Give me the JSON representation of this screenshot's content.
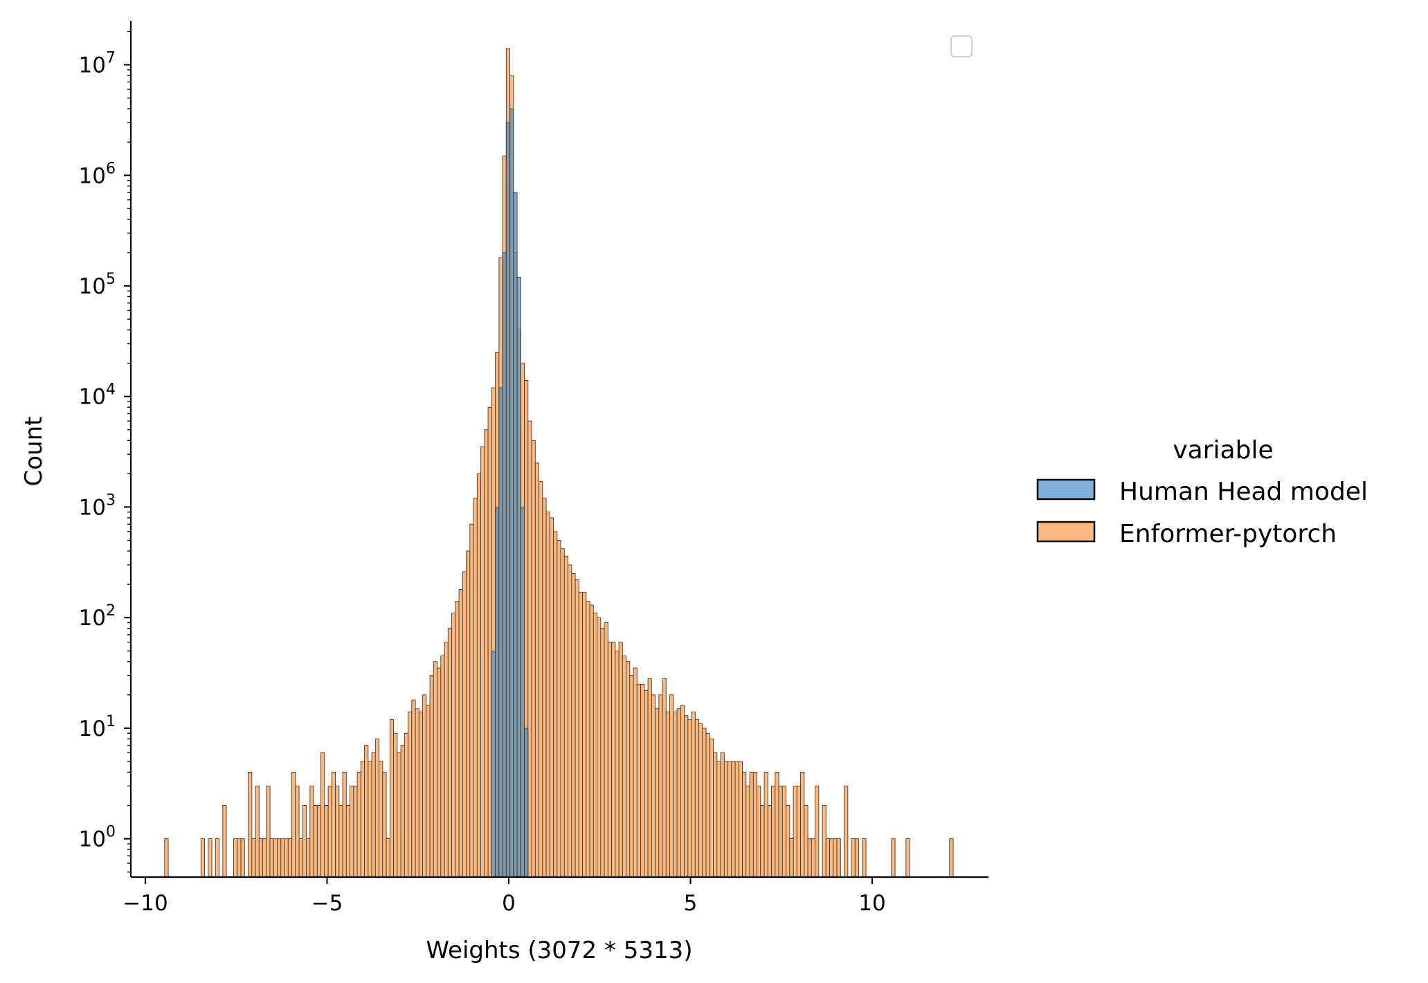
{
  "chart_data": {
    "type": "histogram",
    "title": "",
    "xlabel": "Weights (3072 * 5313)",
    "ylabel": "Count",
    "xlim": [
      -10.4,
      13.2
    ],
    "ylim": [
      0.45,
      25000000
    ],
    "yscale": "log",
    "grid": false,
    "x_ticks": [
      {
        "value": -10,
        "label": "−10"
      },
      {
        "value": -5,
        "label": "−5"
      },
      {
        "value": 0,
        "label": "0"
      },
      {
        "value": 5,
        "label": "5"
      },
      {
        "value": 10,
        "label": "10"
      }
    ],
    "y_ticks": [
      {
        "value": 1,
        "base": "10",
        "exp": "0"
      },
      {
        "value": 10,
        "base": "10",
        "exp": "1"
      },
      {
        "value": 100,
        "base": "10",
        "exp": "2"
      },
      {
        "value": 1000,
        "base": "10",
        "exp": "3"
      },
      {
        "value": 10000,
        "base": "10",
        "exp": "4"
      },
      {
        "value": 100000,
        "base": "10",
        "exp": "5"
      },
      {
        "value": 1000000,
        "base": "10",
        "exp": "6"
      },
      {
        "value": 10000000,
        "base": "10",
        "exp": "7"
      }
    ],
    "legend": {
      "title": "variable",
      "placement": "right-outside",
      "empty_box": "top-right"
    },
    "bin_start": -9.47,
    "bin_width": 0.1,
    "series": [
      {
        "name": "Human Head model",
        "color": "#7fb0d8",
        "edge": "#000000",
        "bins": [
          [
            -0.47,
            50
          ],
          [
            -0.37,
            1000
          ],
          [
            -0.27,
            12000
          ],
          [
            -0.17,
            200000
          ],
          [
            -0.07,
            3000000
          ],
          [
            0.03,
            4000000
          ],
          [
            0.13,
            700000
          ],
          [
            0.23,
            120000
          ],
          [
            0.33,
            1000
          ],
          [
            0.43,
            10
          ]
        ]
      },
      {
        "name": "Enformer-pytorch",
        "color": "#ffb97d",
        "edge": "#000000",
        "bins": [
          [
            -9.47,
            1
          ],
          [
            -8.47,
            1
          ],
          [
            -8.27,
            1
          ],
          [
            -8.07,
            1
          ],
          [
            -7.87,
            2
          ],
          [
            -7.57,
            1
          ],
          [
            -7.47,
            1
          ],
          [
            -7.37,
            1
          ],
          [
            -7.17,
            4
          ],
          [
            -7.07,
            1
          ],
          [
            -6.97,
            3
          ],
          [
            -6.87,
            1
          ],
          [
            -6.77,
            1
          ],
          [
            -6.67,
            3
          ],
          [
            -6.57,
            1
          ],
          [
            -6.47,
            1
          ],
          [
            -6.37,
            1
          ],
          [
            -6.27,
            1
          ],
          [
            -6.17,
            1
          ],
          [
            -6.07,
            1
          ],
          [
            -5.97,
            4
          ],
          [
            -5.87,
            3
          ],
          [
            -5.77,
            1
          ],
          [
            -5.67,
            2
          ],
          [
            -5.57,
            1
          ],
          [
            -5.47,
            3
          ],
          [
            -5.37,
            2
          ],
          [
            -5.27,
            2
          ],
          [
            -5.17,
            6
          ],
          [
            -5.07,
            2
          ],
          [
            -4.97,
            3
          ],
          [
            -4.87,
            4
          ],
          [
            -4.77,
            3
          ],
          [
            -4.67,
            2
          ],
          [
            -4.57,
            4
          ],
          [
            -4.47,
            2
          ],
          [
            -4.37,
            3
          ],
          [
            -4.27,
            3
          ],
          [
            -4.17,
            4
          ],
          [
            -4.07,
            5
          ],
          [
            -3.97,
            7
          ],
          [
            -3.87,
            5
          ],
          [
            -3.77,
            6
          ],
          [
            -3.67,
            8
          ],
          [
            -3.57,
            5
          ],
          [
            -3.47,
            4
          ],
          [
            -3.37,
            1
          ],
          [
            -3.27,
            12
          ],
          [
            -3.17,
            9
          ],
          [
            -3.07,
            6
          ],
          [
            -2.97,
            7
          ],
          [
            -2.87,
            9
          ],
          [
            -2.77,
            14
          ],
          [
            -2.67,
            18
          ],
          [
            -2.57,
            15
          ],
          [
            -2.47,
            14
          ],
          [
            -2.37,
            20
          ],
          [
            -2.27,
            16
          ],
          [
            -2.17,
            30
          ],
          [
            -2.07,
            40
          ],
          [
            -1.97,
            35
          ],
          [
            -1.87,
            45
          ],
          [
            -1.77,
            60
          ],
          [
            -1.67,
            80
          ],
          [
            -1.57,
            110
          ],
          [
            -1.47,
            140
          ],
          [
            -1.37,
            180
          ],
          [
            -1.27,
            260
          ],
          [
            -1.17,
            400
          ],
          [
            -1.07,
            700
          ],
          [
            -0.97,
            1200
          ],
          [
            -0.87,
            2000
          ],
          [
            -0.77,
            3500
          ],
          [
            -0.67,
            5000
          ],
          [
            -0.57,
            8000
          ],
          [
            -0.47,
            12000
          ],
          [
            -0.37,
            25000
          ],
          [
            -0.27,
            180000
          ],
          [
            -0.17,
            1500000
          ],
          [
            -0.07,
            14000000
          ],
          [
            0.03,
            8000000
          ],
          [
            0.13,
            200000
          ],
          [
            0.23,
            40000
          ],
          [
            0.33,
            20000
          ],
          [
            0.43,
            14000
          ],
          [
            0.53,
            6000
          ],
          [
            0.63,
            4000
          ],
          [
            0.73,
            2500
          ],
          [
            0.83,
            1700
          ],
          [
            0.93,
            1200
          ],
          [
            1.03,
            900
          ],
          [
            1.13,
            800
          ],
          [
            1.23,
            600
          ],
          [
            1.33,
            500
          ],
          [
            1.43,
            420
          ],
          [
            1.53,
            360
          ],
          [
            1.63,
            300
          ],
          [
            1.73,
            250
          ],
          [
            1.83,
            220
          ],
          [
            1.93,
            170
          ],
          [
            2.03,
            170
          ],
          [
            2.13,
            140
          ],
          [
            2.23,
            130
          ],
          [
            2.33,
            110
          ],
          [
            2.43,
            100
          ],
          [
            2.53,
            80
          ],
          [
            2.63,
            90
          ],
          [
            2.73,
            60
          ],
          [
            2.83,
            60
          ],
          [
            2.93,
            50
          ],
          [
            3.03,
            60
          ],
          [
            3.13,
            45
          ],
          [
            3.23,
            40
          ],
          [
            3.33,
            30
          ],
          [
            3.43,
            35
          ],
          [
            3.53,
            25
          ],
          [
            3.63,
            25
          ],
          [
            3.73,
            22
          ],
          [
            3.83,
            28
          ],
          [
            3.93,
            20
          ],
          [
            4.03,
            15
          ],
          [
            4.13,
            20
          ],
          [
            4.23,
            28
          ],
          [
            4.33,
            14
          ],
          [
            4.43,
            20
          ],
          [
            4.53,
            14
          ],
          [
            4.63,
            15
          ],
          [
            4.73,
            16
          ],
          [
            4.83,
            13
          ],
          [
            4.93,
            12
          ],
          [
            5.03,
            14
          ],
          [
            5.13,
            12
          ],
          [
            5.23,
            11
          ],
          [
            5.33,
            10
          ],
          [
            5.43,
            9
          ],
          [
            5.53,
            8
          ],
          [
            5.63,
            6
          ],
          [
            5.73,
            5
          ],
          [
            5.83,
            6
          ],
          [
            5.93,
            5
          ],
          [
            6.03,
            5
          ],
          [
            6.13,
            5
          ],
          [
            6.23,
            5
          ],
          [
            6.33,
            5
          ],
          [
            6.43,
            4
          ],
          [
            6.53,
            3
          ],
          [
            6.63,
            4
          ],
          [
            6.73,
            4
          ],
          [
            6.83,
            3
          ],
          [
            6.93,
            2
          ],
          [
            7.03,
            4
          ],
          [
            7.13,
            2
          ],
          [
            7.23,
            3
          ],
          [
            7.33,
            4
          ],
          [
            7.43,
            3
          ],
          [
            7.53,
            3
          ],
          [
            7.63,
            2
          ],
          [
            7.73,
            1
          ],
          [
            7.83,
            3
          ],
          [
            7.93,
            3
          ],
          [
            8.03,
            4
          ],
          [
            8.13,
            2
          ],
          [
            8.23,
            1
          ],
          [
            8.33,
            1
          ],
          [
            8.43,
            3
          ],
          [
            8.63,
            2
          ],
          [
            8.73,
            1
          ],
          [
            8.83,
            1
          ],
          [
            8.93,
            1
          ],
          [
            9.03,
            1
          ],
          [
            9.23,
            3
          ],
          [
            9.43,
            1
          ],
          [
            9.53,
            1
          ],
          [
            9.73,
            1
          ],
          [
            10.53,
            1
          ],
          [
            10.93,
            1
          ],
          [
            12.13,
            1
          ]
        ]
      }
    ]
  }
}
